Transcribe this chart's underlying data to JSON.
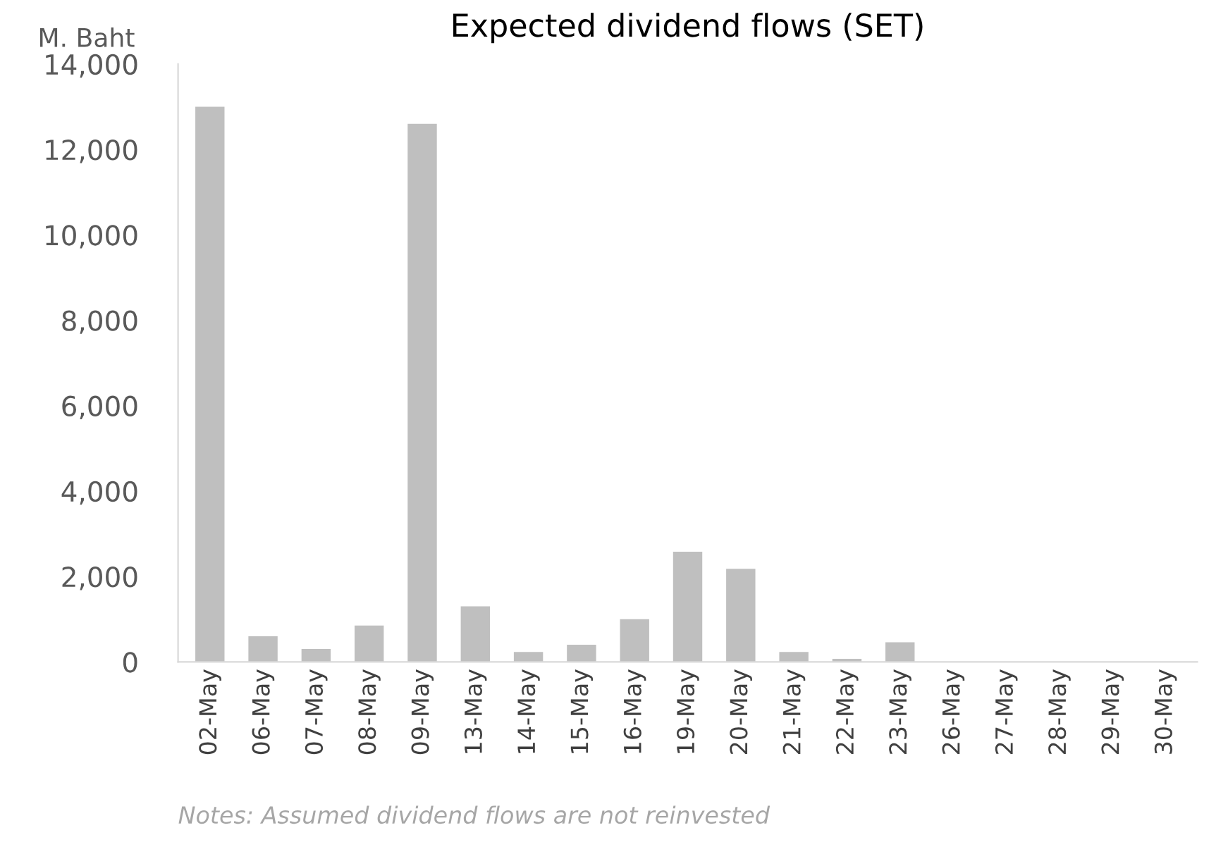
{
  "chart_data": {
    "type": "bar",
    "title": "Expected dividend flows (SET)",
    "ylabel": "M. Baht",
    "categories": [
      "02-May",
      "06-May",
      "07-May",
      "08-May",
      "09-May",
      "13-May",
      "14-May",
      "15-May",
      "16-May",
      "19-May",
      "20-May",
      "21-May",
      "22-May",
      "23-May",
      "26-May",
      "27-May",
      "28-May",
      "29-May",
      "30-May"
    ],
    "values": [
      13000,
      600,
      300,
      850,
      12600,
      1300,
      230,
      400,
      1000,
      2580,
      2180,
      230,
      70,
      460,
      0,
      0,
      0,
      0,
      0
    ],
    "color": "#bfbfbf",
    "ylim": [
      0,
      14000
    ],
    "yticks": [
      {
        "value": 0,
        "label": "0"
      },
      {
        "value": 2000,
        "label": "2,000"
      },
      {
        "value": 4000,
        "label": "4,000"
      },
      {
        "value": 6000,
        "label": "6,000"
      },
      {
        "value": 8000,
        "label": "8,000"
      },
      {
        "value": 10000,
        "label": "10,000"
      },
      {
        "value": 12000,
        "label": "12,000"
      },
      {
        "value": 14000,
        "label": "14,000"
      }
    ],
    "grid": false,
    "legend": false,
    "annotations": [
      "Notes: Assumed dividend flows are not reinvested"
    ]
  }
}
